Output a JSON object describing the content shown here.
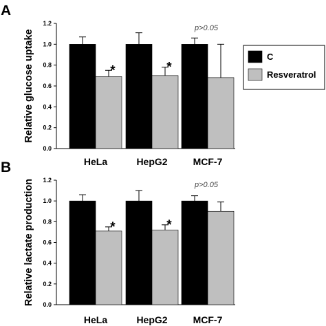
{
  "colors": {
    "control": "#000000",
    "resveratrol": "#bfbfbf",
    "axis": "#000000",
    "annotation": "#444444"
  },
  "legend": [
    {
      "label": "C",
      "color": "#000000"
    },
    {
      "label": "Resveratrol",
      "color": "#bfbfbf"
    }
  ],
  "chart_data": [
    {
      "type": "bar",
      "panel": "A",
      "ylabel": "Relative glucose uptake",
      "ylim": [
        0,
        1.2
      ],
      "yticks": [
        "0.0",
        "0.2",
        "0.4",
        "0.6",
        "0.8",
        "1.0",
        "1.2"
      ],
      "categories": [
        "HeLa",
        "HepG2",
        "MCF-7"
      ],
      "series": [
        {
          "name": "C",
          "values": [
            1.0,
            1.0,
            1.0
          ],
          "errors": [
            0.07,
            0.11,
            0.06
          ]
        },
        {
          "name": "Resveratrol",
          "values": [
            0.69,
            0.7,
            0.68
          ],
          "errors": [
            0.06,
            0.08,
            0.32
          ]
        }
      ],
      "annotations": [
        {
          "category": "HeLa",
          "text": "*"
        },
        {
          "category": "HepG2",
          "text": "*"
        },
        {
          "category": "MCF-7",
          "text": "p>0.05"
        }
      ]
    },
    {
      "type": "bar",
      "panel": "B",
      "ylabel": "Relative lactate production",
      "ylim": [
        0,
        1.2
      ],
      "yticks": [
        "0.0",
        "0.2",
        "0.4",
        "0.6",
        "0.8",
        "1.0",
        "1.2"
      ],
      "categories": [
        "HeLa",
        "HepG2",
        "MCF-7"
      ],
      "series": [
        {
          "name": "C",
          "values": [
            1.0,
            1.0,
            1.0
          ],
          "errors": [
            0.06,
            0.1,
            0.05
          ]
        },
        {
          "name": "Resveratrol",
          "values": [
            0.71,
            0.72,
            0.9
          ],
          "errors": [
            0.04,
            0.05,
            0.09
          ]
        }
      ],
      "annotations": [
        {
          "category": "HeLa",
          "text": "*"
        },
        {
          "category": "HepG2",
          "text": "*"
        },
        {
          "category": "MCF-7",
          "text": "p>0.05"
        }
      ]
    }
  ]
}
